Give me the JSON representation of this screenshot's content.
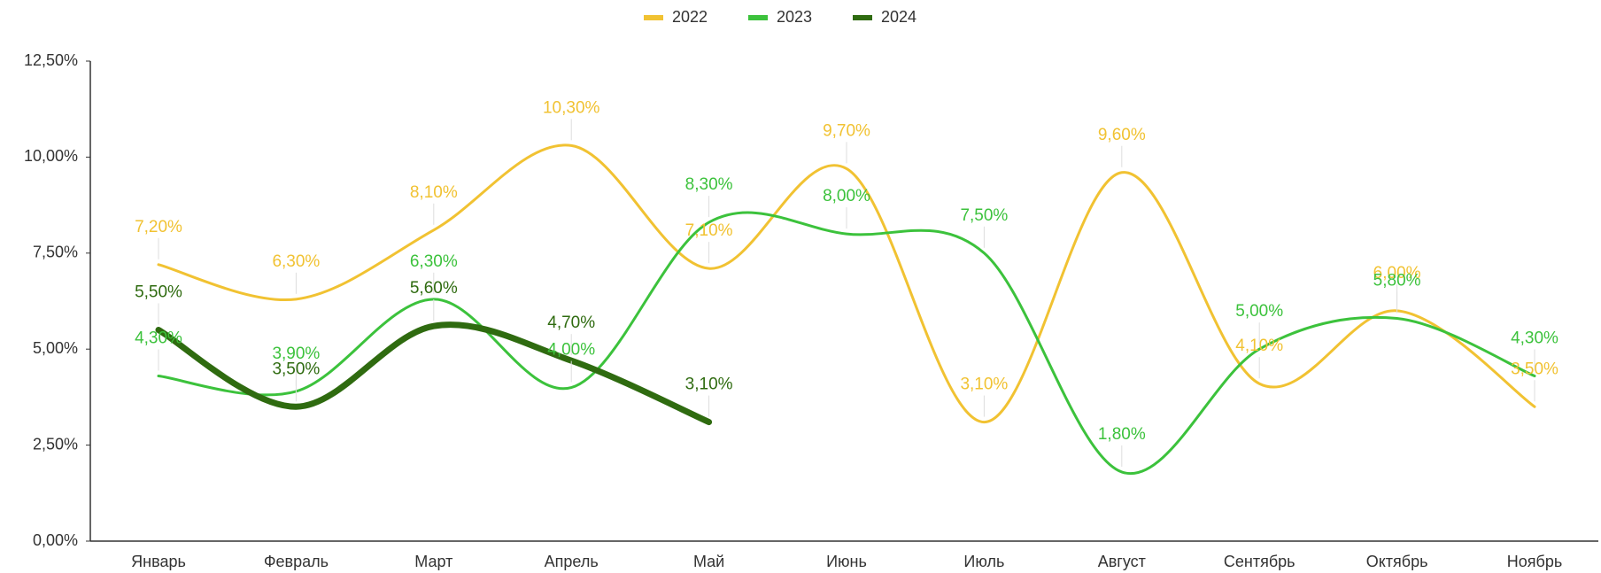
{
  "chart_data": {
    "type": "line",
    "categories": [
      "Январь",
      "Февраль",
      "Март",
      "Апрель",
      "Май",
      "Июнь",
      "Июль",
      "Август",
      "Сентябрь",
      "Октябрь",
      "Ноябрь"
    ],
    "series": [
      {
        "name": "2022",
        "color": "#f1c232",
        "width": 3,
        "values": [
          7.2,
          6.3,
          8.1,
          10.3,
          7.1,
          9.7,
          3.1,
          9.6,
          4.1,
          6.0,
          3.5
        ],
        "value_labels": [
          "7,20%",
          "6,30%",
          "8,10%",
          "10,30%",
          "7,10%",
          "9,70%",
          "3,10%",
          "9,60%",
          "4,10%",
          "6,00%",
          "3,50%"
        ]
      },
      {
        "name": "2023",
        "color": "#3cc23c",
        "width": 3,
        "values": [
          4.3,
          3.9,
          6.3,
          4.0,
          8.3,
          8.0,
          7.5,
          1.8,
          5.0,
          5.8,
          4.3
        ],
        "value_labels": [
          "4,30%",
          "3,90%",
          "6,30%",
          "4,00%",
          "8,30%",
          "8,00%",
          "7,50%",
          "1,80%",
          "5,00%",
          "5,80%",
          "4,30%"
        ]
      },
      {
        "name": "2024",
        "color": "#2f6b10",
        "width": 7,
        "values": [
          5.5,
          3.5,
          5.6,
          4.7,
          3.1,
          null,
          null,
          null,
          null,
          null,
          null
        ],
        "value_labels": [
          "5,50%",
          "3,50%",
          "5,60%",
          "4,70%",
          "3,10%",
          null,
          null,
          null,
          null,
          null,
          null
        ]
      }
    ],
    "ylim": [
      0,
      12.5
    ],
    "yticks": [
      {
        "value": 0,
        "label": "0,00%"
      },
      {
        "value": 2.5,
        "label": "2,50%"
      },
      {
        "value": 5,
        "label": "5,00%"
      },
      {
        "value": 7.5,
        "label": "7,50%"
      },
      {
        "value": 10,
        "label": "10,00%"
      },
      {
        "value": 12.5,
        "label": "12,50%"
      }
    ],
    "legend": "top"
  }
}
